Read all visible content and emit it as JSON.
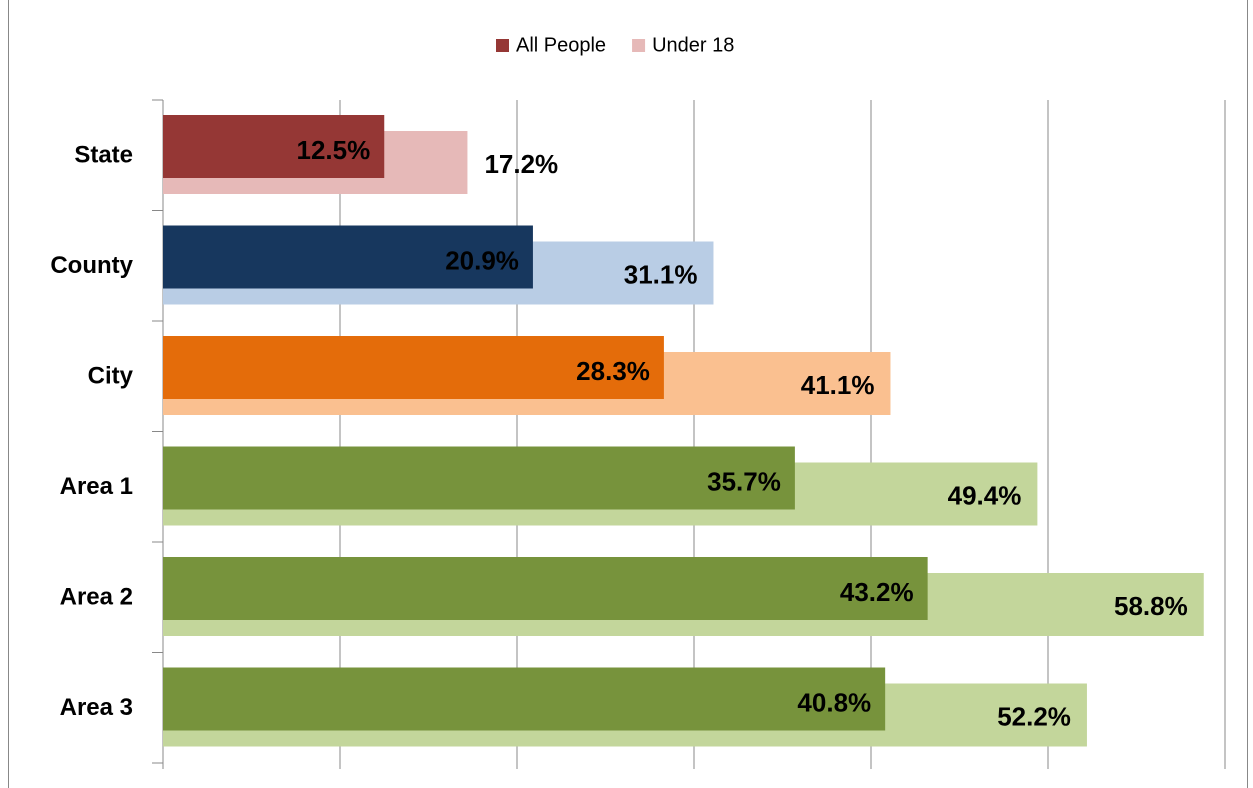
{
  "chart_data": {
    "type": "bar",
    "orientation": "horizontal",
    "categories": [
      "State",
      "County",
      "City",
      "Area 1",
      "Area 2",
      "Area 3"
    ],
    "series": [
      {
        "name": "All People",
        "color": "#953735",
        "colors": [
          "#953735",
          "#17375e",
          "#e46c0a",
          "#77933c",
          "#77933c",
          "#77933c"
        ],
        "values": [
          12.5,
          20.9,
          28.3,
          35.7,
          43.2,
          40.8
        ],
        "value_labels": [
          "12.5%",
          "20.9%",
          "28.3%",
          "35.7%",
          "43.2%",
          "40.8%"
        ]
      },
      {
        "name": "Under 18",
        "color": "#e6b9b8",
        "colors": [
          "#e6b9b8",
          "#b9cde5",
          "#fac090",
          "#c3d69b",
          "#c3d69b",
          "#c3d69b"
        ],
        "values": [
          17.2,
          31.1,
          41.1,
          49.4,
          58.8,
          52.2
        ],
        "value_labels": [
          "17.2%",
          "31.1%",
          "41.1%",
          "49.4%",
          "58.8%",
          "52.2%"
        ]
      }
    ],
    "xlim": [
      0,
      60
    ],
    "xticks": [
      0,
      10,
      20,
      30,
      40,
      50,
      60
    ],
    "grid": true,
    "legend": "top"
  }
}
